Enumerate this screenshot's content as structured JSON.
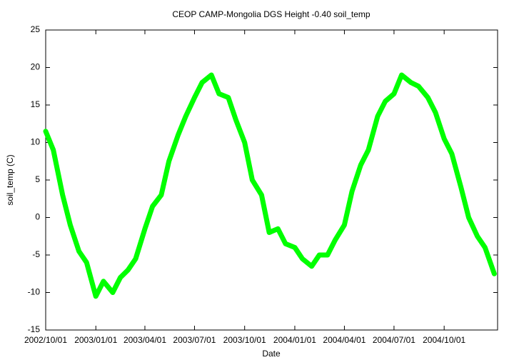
{
  "chart_data": {
    "type": "line",
    "title": "CEOP CAMP-Mongolia DGS Height -0.40 soil_temp",
    "xlabel": "Date",
    "ylabel": "soil_temp (C)",
    "color": "#00ff00",
    "x": [
      "2002/10/01",
      "2002/10/15",
      "2002/11/01",
      "2002/11/15",
      "2002/12/01",
      "2002/12/15",
      "2003/01/01",
      "2003/01/15",
      "2003/02/01",
      "2003/02/15",
      "2003/03/01",
      "2003/03/15",
      "2003/04/01",
      "2003/04/15",
      "2003/05/01",
      "2003/05/15",
      "2003/06/01",
      "2003/06/15",
      "2003/07/01",
      "2003/07/15",
      "2003/08/01",
      "2003/08/15",
      "2003/09/01",
      "2003/09/15",
      "2003/10/01",
      "2003/10/15",
      "2003/11/01",
      "2003/11/15",
      "2003/12/01",
      "2003/12/15",
      "2004/01/01",
      "2004/01/15",
      "2004/02/01",
      "2004/02/15",
      "2004/03/01",
      "2004/03/15",
      "2004/04/01",
      "2004/04/15",
      "2004/05/01",
      "2004/05/15",
      "2004/06/01",
      "2004/06/15",
      "2004/07/01",
      "2004/07/15",
      "2004/08/01",
      "2004/08/15",
      "2004/09/01",
      "2004/09/15",
      "2004/10/01",
      "2004/10/15",
      "2004/11/01",
      "2004/11/15",
      "2004/12/01",
      "2004/12/15",
      "2005/01/01"
    ],
    "values": [
      11.5,
      9,
      3,
      -1,
      -4.5,
      -6,
      -10.5,
      -8.5,
      -10,
      -8,
      -7,
      -5.5,
      -1.5,
      1.5,
      3,
      7.5,
      11,
      13.5,
      16,
      18,
      19,
      16.5,
      16,
      13,
      10,
      5,
      3,
      -2,
      -1.5,
      -3.5,
      -4,
      -5.5,
      -6.5,
      -5,
      -5,
      -3,
      -1,
      3.5,
      7,
      9,
      13.5,
      15.5,
      16.5,
      19,
      18,
      17.5,
      16,
      14,
      10.5,
      8.5,
      4,
      0,
      -2.5,
      -4,
      -7.5
    ],
    "xlim": [
      "2002/10/01",
      "2005/01/07"
    ],
    "xticks": [
      "2002/10/01",
      "2003/01/01",
      "2003/04/01",
      "2003/07/01",
      "2003/10/01",
      "2004/01/01",
      "2004/04/01",
      "2004/07/01",
      "2004/10/01"
    ],
    "ylim": [
      -15,
      25
    ],
    "yticks": [
      -15,
      -10,
      -5,
      0,
      5,
      10,
      15,
      20,
      25
    ]
  }
}
